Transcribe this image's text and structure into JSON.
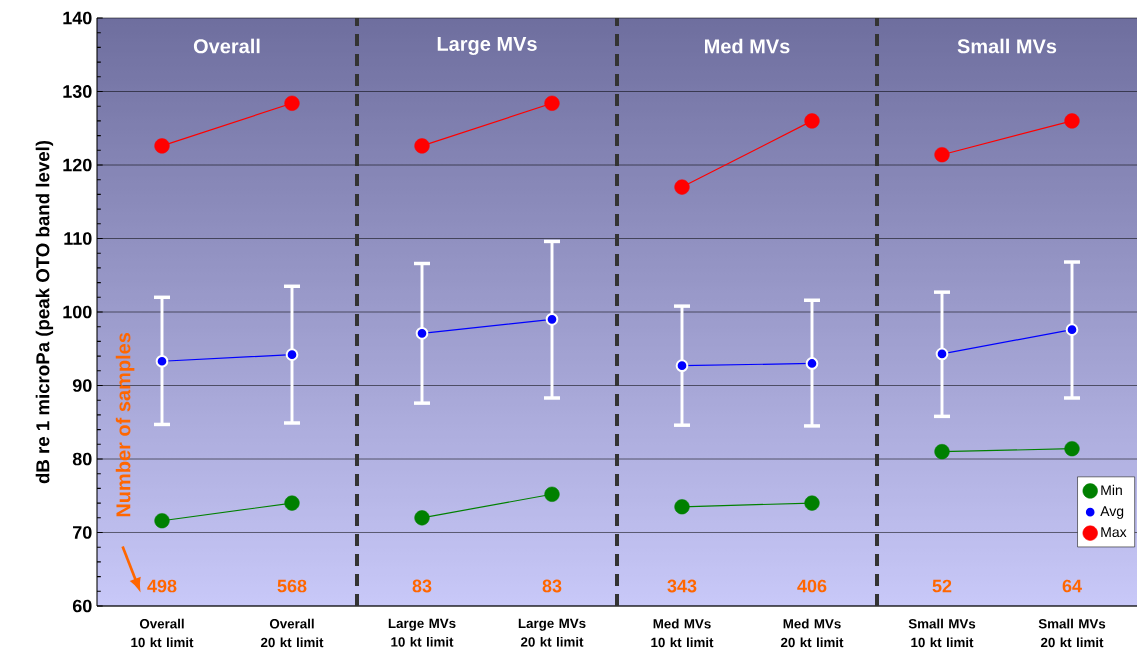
{
  "chart_data": {
    "type": "line",
    "ylabel": "dB re 1 microPa (peak OTO band level)",
    "categories": [
      "Overall 10 kt limit",
      "Overall 20 kt limit",
      "Large MVs 10 kt limit",
      "Large MVs 20 kt limit",
      "Med MVs 10 kt limit",
      "Med MVs 20 kt limit",
      "Small MVs 10 kt limit",
      "Small MVs 20 kt limit"
    ],
    "series": [
      {
        "name": "Min",
        "color": "#008000",
        "values": [
          71.6,
          74.0,
          72.0,
          75.2,
          73.5,
          74.0,
          81.0,
          81.4
        ]
      },
      {
        "name": "Avg",
        "color": "#0000ff",
        "values": [
          93.3,
          94.2,
          97.1,
          99.0,
          92.7,
          93.0,
          94.3,
          97.6
        ],
        "errors": [
          [
            84.7,
            102.0
          ],
          [
            84.9,
            103.5
          ],
          [
            87.6,
            106.6
          ],
          [
            88.3,
            109.6
          ],
          [
            84.6,
            100.8
          ],
          [
            84.5,
            101.6
          ],
          [
            85.8,
            102.7
          ],
          [
            88.3,
            106.8
          ]
        ]
      },
      {
        "name": "Max",
        "color": "#ff0000",
        "values": [
          122.6,
          128.4,
          122.6,
          128.4,
          117.0,
          126.0,
          121.4,
          126.0
        ]
      }
    ],
    "ylim": [
      60,
      140
    ],
    "yticks": [
      60,
      70,
      80,
      90,
      100,
      110,
      120,
      130,
      140
    ],
    "grid": "y",
    "legend": "bottom right",
    "marker": "circle",
    "annotations": [
      "Number of samples",
      "498",
      "568",
      "83",
      "83",
      "343",
      "406",
      "52",
      "64",
      "Overall",
      "Large MVs",
      "Med MVs",
      "Small MVs"
    ]
  }
}
